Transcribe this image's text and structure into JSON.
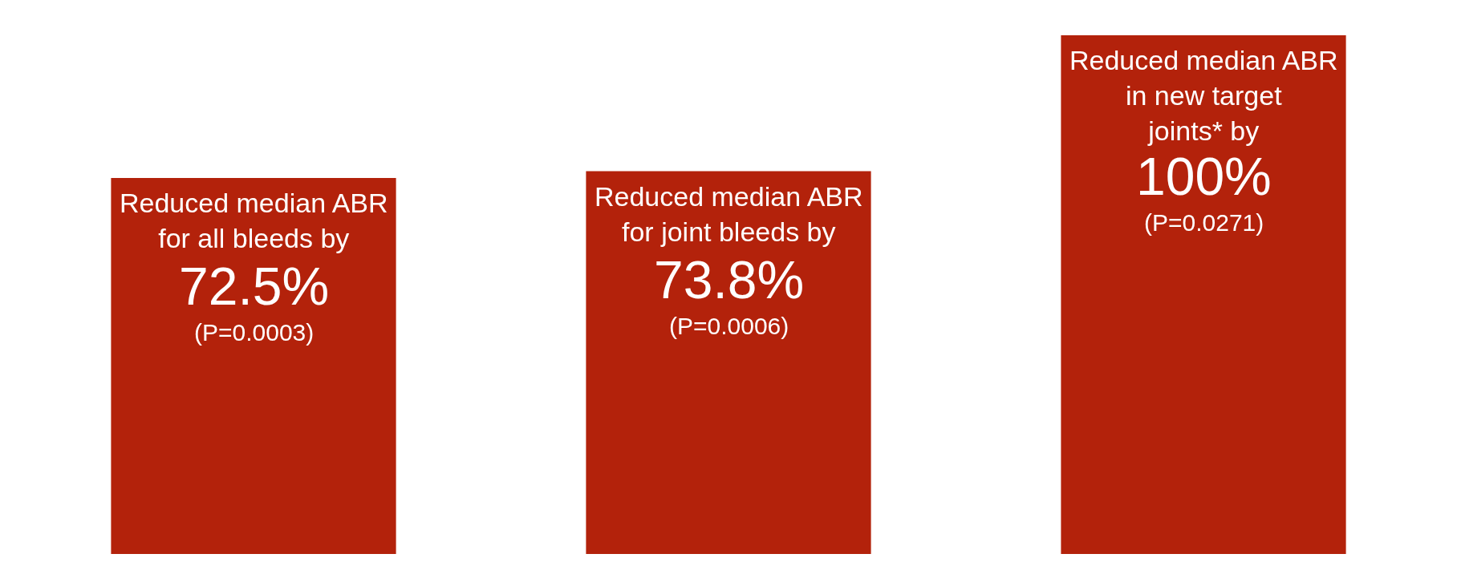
{
  "chart_data": {
    "type": "bar",
    "categories": [
      "Reduced median ABR for all bleeds by",
      "Reduced median ABR for joint bleeds by",
      "Reduced median ABR in new target joints* by"
    ],
    "values": [
      72.5,
      73.8,
      100
    ],
    "value_labels": [
      "72.5%",
      "73.8%",
      "100%"
    ],
    "annotations": [
      "(P=0.0003)",
      "(P=0.0006)",
      "(P=0.0271)"
    ],
    "color": "#b3220b",
    "grid": false,
    "legend": false
  }
}
